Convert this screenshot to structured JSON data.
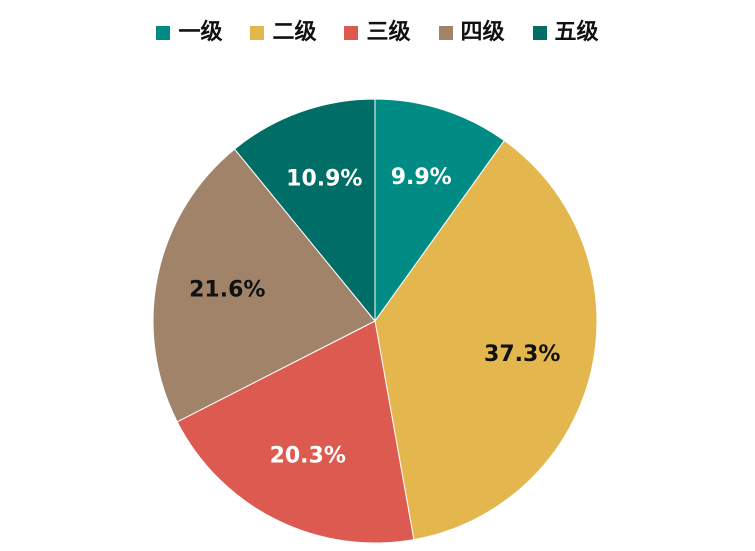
{
  "chart_data": {
    "type": "pie",
    "categories": [
      "一级",
      "二级",
      "三级",
      "四级",
      "五级"
    ],
    "values": [
      9.9,
      37.3,
      20.3,
      21.6,
      10.9
    ],
    "labels": [
      "9.9%",
      "37.3%",
      "20.3%",
      "21.6%",
      "10.9%"
    ],
    "colors": [
      "#008B84",
      "#E3B74E",
      "#DD5A50",
      "#A08369",
      "#006D66"
    ],
    "label_colors": [
      "#ffffff",
      "#111111",
      "#ffffff",
      "#111111",
      "#ffffff"
    ],
    "start_angle": "12 o'clock",
    "direction": "clockwise",
    "legend_position": "top"
  }
}
